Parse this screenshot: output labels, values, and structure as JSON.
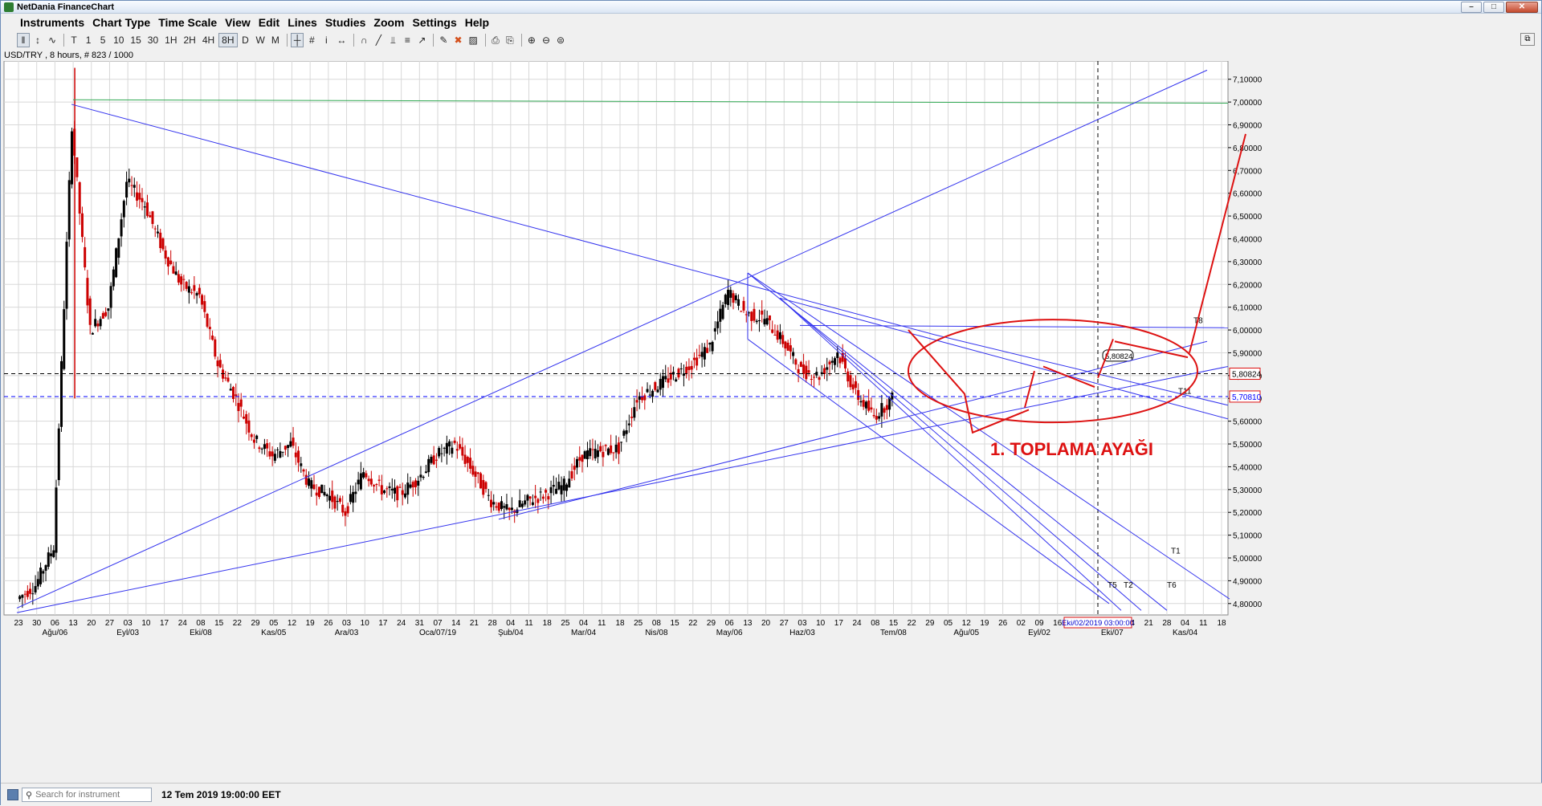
{
  "app": {
    "title": "NetDania FinanceChart",
    "instrument_label": "USD/TRY , 8 hours, # 823 / 1000"
  },
  "menu": [
    "Instruments",
    "Chart Type",
    "Time Scale",
    "View",
    "Edit",
    "Lines",
    "Studies",
    "Zoom",
    "Settings",
    "Help"
  ],
  "toolbar": {
    "chart_icons": [
      "bar-chart-icon",
      "candlestick-icon",
      "line-chart-icon"
    ],
    "timeframes": [
      "T",
      "1",
      "5",
      "10",
      "15",
      "30",
      "1H",
      "2H",
      "4H",
      "8H",
      "D",
      "W",
      "M"
    ],
    "active_timeframe": "8H",
    "tool_icons": [
      "crosshair-icon",
      "grid-icon",
      "info-cursor-icon",
      "pan-icon",
      "magnet-icon",
      "trendline-icon",
      "fork-icon",
      "fibonacci-icon",
      "arrow-icon",
      "pencil-icon",
      "delete-icon",
      "color-icon",
      "print-icon",
      "print-preview-icon",
      "zoom-in-icon",
      "zoom-out-icon",
      "zoom-reset-icon"
    ]
  },
  "status": {
    "search_placeholder": "Search for instrument",
    "datetime": "12 Tem 2019 19:00:00 EET"
  },
  "chart_data": {
    "type": "candlestick",
    "instrument": "USD/TRY",
    "interval": "8 hours",
    "y_ticks": [
      "7,10000",
      "7,00000",
      "6,90000",
      "6,80000",
      "6,70000",
      "6,60000",
      "6,50000",
      "6,40000",
      "6,30000",
      "6,20000",
      "6,10000",
      "6,00000",
      "5,90000",
      "5,80000",
      "5,70000",
      "5,60000",
      "5,50000",
      "5,40000",
      "5,30000",
      "5,20000",
      "5,10000",
      "5,00000",
      "4,90000",
      "4,80000"
    ],
    "y_values": [
      7.1,
      7.0,
      6.9,
      6.8,
      6.7,
      6.6,
      6.5,
      6.4,
      6.3,
      6.2,
      6.1,
      6.0,
      5.9,
      5.8,
      5.7,
      5.6,
      5.5,
      5.4,
      5.3,
      5.2,
      5.1,
      5.0,
      4.9,
      4.8
    ],
    "ylim": [
      4.75,
      7.18
    ],
    "x_day_labels": [
      "23",
      "30",
      "06",
      "13",
      "20",
      "27",
      "03",
      "10",
      "17",
      "24",
      "08",
      "15",
      "22",
      "29",
      "05",
      "12",
      "19",
      "26",
      "03",
      "10",
      "17",
      "24",
      "31",
      "07",
      "14",
      "21",
      "28",
      "04",
      "11",
      "18",
      "25",
      "04",
      "11",
      "18",
      "25",
      "08",
      "15",
      "22",
      "29",
      "06",
      "13",
      "20",
      "27",
      "03",
      "10",
      "17",
      "24",
      "08",
      "15",
      "22",
      "29",
      "05",
      "12",
      "19",
      "26",
      "02",
      "09",
      "16",
      "23",
      "30",
      "07",
      "14",
      "21",
      "28",
      "04",
      "11",
      "18"
    ],
    "x_month_labels": [
      "Ağu/06",
      "Eyl/03",
      "Eki/08",
      "Kas/05",
      "Ara/03",
      "Oca/07/19",
      "Şub/04",
      "Mar/04",
      "Nis/08",
      "May/06",
      "Haz/03",
      "Tem/08",
      "Ağu/05",
      "Eyl/02",
      "Eki/07",
      "Kas/04"
    ],
    "price_markers": [
      {
        "label": "5,80824",
        "value": 5.80824,
        "color": "#000000"
      },
      {
        "label": "5,70810",
        "value": 5.7081,
        "color": "#0000ff"
      }
    ],
    "crosshair_date": "Eki/02/2019 03:00:00",
    "callout_value": "5,80824",
    "line_labels": [
      "T8",
      "T11",
      "T1",
      "T5",
      "T2",
      "T6"
    ],
    "annotation": "1.  TOPLAMA  AYAĞI",
    "close_path": [
      [
        "23",
        4.82
      ],
      [
        "30",
        4.88
      ],
      [
        "06",
        5.05
      ],
      [
        "13",
        6.9
      ],
      [
        "20",
        6.0
      ],
      [
        "27",
        6.1
      ],
      [
        "03",
        6.65
      ],
      [
        "10",
        6.55
      ],
      [
        "17",
        6.35
      ],
      [
        "24",
        6.2
      ],
      [
        "08",
        6.15
      ],
      [
        "15",
        5.85
      ],
      [
        "22",
        5.7
      ],
      [
        "29",
        5.52
      ],
      [
        "05",
        5.45
      ],
      [
        "12",
        5.5
      ],
      [
        "19",
        5.32
      ],
      [
        "26",
        5.28
      ],
      [
        "03",
        5.2
      ],
      [
        "10",
        5.38
      ],
      [
        "17",
        5.3
      ],
      [
        "24",
        5.28
      ],
      [
        "31",
        5.35
      ],
      [
        "07",
        5.45
      ],
      [
        "14",
        5.5
      ],
      [
        "21",
        5.38
      ],
      [
        "28",
        5.25
      ],
      [
        "04",
        5.2
      ],
      [
        "11",
        5.25
      ],
      [
        "18",
        5.28
      ],
      [
        "25",
        5.32
      ],
      [
        "04",
        5.45
      ],
      [
        "11",
        5.47
      ],
      [
        "18",
        5.48
      ],
      [
        "25",
        5.7
      ],
      [
        "08",
        5.75
      ],
      [
        "15",
        5.8
      ],
      [
        "22",
        5.85
      ],
      [
        "29",
        5.93
      ],
      [
        "06",
        6.17
      ],
      [
        "13",
        6.07
      ],
      [
        "20",
        6.05
      ],
      [
        "27",
        5.95
      ],
      [
        "03",
        5.82
      ],
      [
        "10",
        5.8
      ],
      [
        "17",
        5.9
      ],
      [
        "24",
        5.72
      ],
      [
        "08",
        5.62
      ],
      [
        "15",
        5.7
      ]
    ],
    "colors": {
      "trendline": "#3333ee",
      "hline_green": "#33aa55",
      "annotation": "#dd1111",
      "candle": "#000000",
      "candle_down": "#cc0000"
    }
  }
}
